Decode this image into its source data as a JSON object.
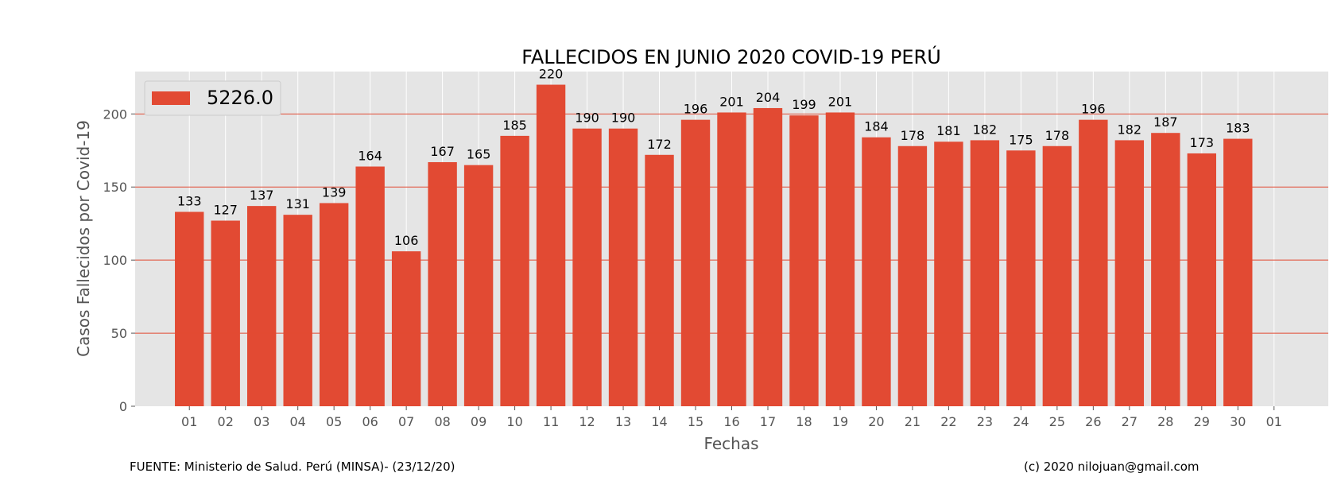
{
  "chart_data": {
    "type": "bar",
    "title": "FALLECIDOS EN JUNIO 2020 COVID-19 PERÚ",
    "xlabel": "Fechas",
    "ylabel": "Casos Fallecidos por Covid-19",
    "categories": [
      "01",
      "02",
      "03",
      "04",
      "05",
      "06",
      "07",
      "08",
      "09",
      "10",
      "11",
      "12",
      "13",
      "14",
      "15",
      "16",
      "17",
      "18",
      "19",
      "20",
      "21",
      "22",
      "23",
      "24",
      "25",
      "26",
      "27",
      "28",
      "29",
      "30"
    ],
    "series": [
      {
        "name": "5226.0",
        "values": [
          133,
          127,
          137,
          131,
          139,
          164,
          106,
          167,
          165,
          185,
          220,
          190,
          190,
          172,
          196,
          201,
          204,
          199,
          201,
          184,
          178,
          181,
          182,
          175,
          178,
          196,
          182,
          187,
          173,
          183
        ]
      }
    ],
    "x_tick_labels": [
      "01",
      "02",
      "03",
      "04",
      "05",
      "06",
      "07",
      "08",
      "09",
      "10",
      "11",
      "12",
      "13",
      "14",
      "15",
      "16",
      "17",
      "18",
      "19",
      "20",
      "21",
      "22",
      "23",
      "24",
      "25",
      "26",
      "27",
      "28",
      "29",
      "30",
      "01"
    ],
    "y_ticks": [
      0,
      50,
      100,
      150,
      200
    ],
    "ylim": [
      0,
      229
    ],
    "grid": true,
    "legend_position": "top-left",
    "colors": {
      "bar": "#E24A33",
      "plot_background": "#E5E5E5",
      "grid_vertical": "#FFFFFF",
      "grid_horizontal": "#E24A33",
      "axis_text": "#555555"
    }
  },
  "footer": {
    "source": "FUENTE: Ministerio de Salud. Perú (MINSA)- (23/12/20)",
    "credit": "(c) 2020 nilojuan@gmail.com"
  }
}
